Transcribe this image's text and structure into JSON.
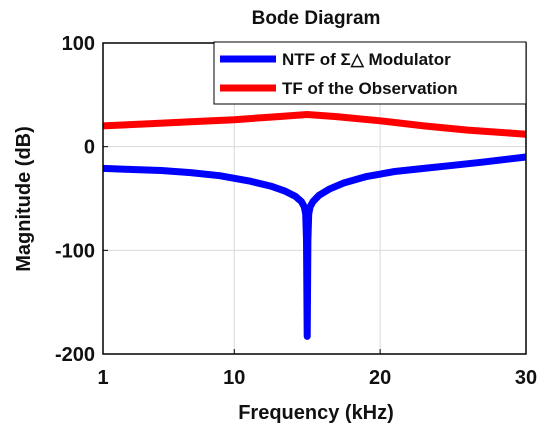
{
  "chart_data": {
    "type": "line",
    "title": "Bode Diagram",
    "xlabel": "Frequency  (kHz)",
    "ylabel": "Magnitude (dB)",
    "xlim": [
      1,
      30
    ],
    "ylim": [
      -200,
      100
    ],
    "xticks": [
      1,
      10,
      20,
      30
    ],
    "yticks": [
      100,
      0,
      -100,
      -200
    ],
    "x_tick_labels": [
      "1",
      "10",
      "20",
      "30"
    ],
    "y_tick_labels": [
      "100",
      "0",
      "-100",
      "-200"
    ],
    "grid": true,
    "legend_position": "top-right",
    "series": [
      {
        "name": "NTF of Σ△ Modulator",
        "color": "#0000ff",
        "x": [
          1,
          3,
          5,
          7,
          9,
          11,
          12.5,
          13.5,
          14.2,
          14.6,
          14.8,
          14.9,
          14.95,
          15,
          15.05,
          15.1,
          15.2,
          15.4,
          15.8,
          16.5,
          17.5,
          19,
          21,
          23,
          25,
          27,
          30
        ],
        "y": [
          -21,
          -22,
          -23,
          -25,
          -28,
          -33,
          -38,
          -43,
          -48,
          -53,
          -58,
          -65,
          -90,
          -183,
          -90,
          -65,
          -58,
          -53,
          -47,
          -41,
          -35,
          -29,
          -24,
          -21,
          -18,
          -15,
          -10
        ]
      },
      {
        "name": "TF of the Observation",
        "color": "#ff0000",
        "x": [
          1,
          4,
          7,
          10,
          13,
          15,
          17,
          20,
          23,
          26,
          30
        ],
        "y": [
          20,
          22,
          24,
          26,
          29,
          31,
          29,
          25,
          20,
          16,
          12
        ]
      }
    ]
  }
}
